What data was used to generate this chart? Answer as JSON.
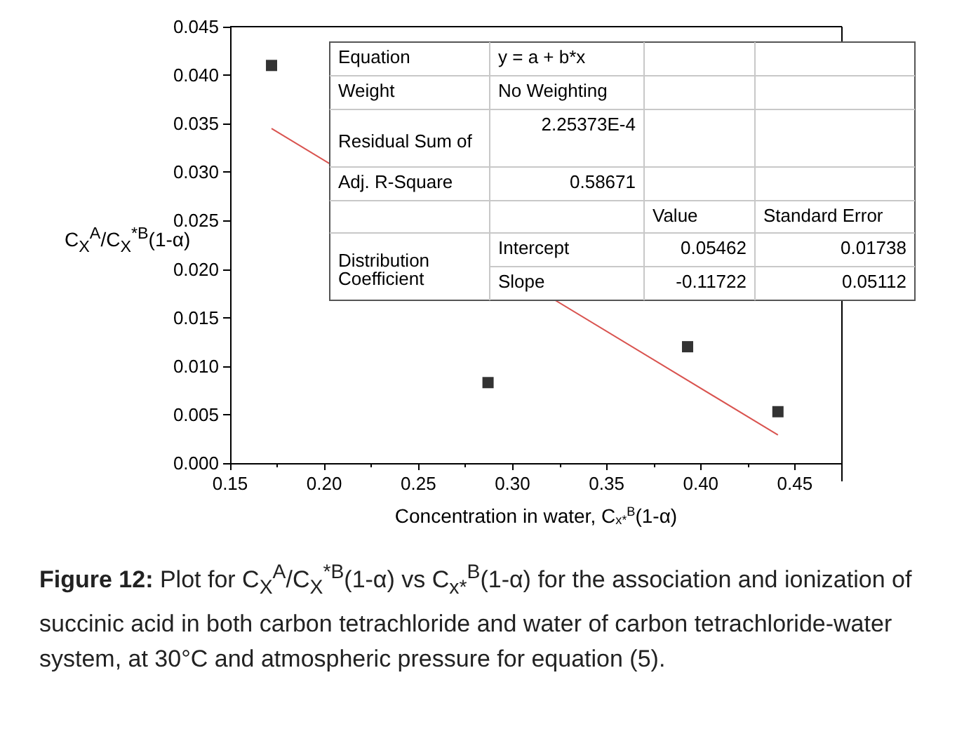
{
  "chart_data": {
    "type": "scatter",
    "xlabel": "Concentration in water, C$_{x*}$$^{B}$(1-α)",
    "ylabel": "C$_{X}$$^{A}$/C$_{X}$$^{*B}$(1-α)",
    "xlim": [
      0.15,
      0.475
    ],
    "xticks": [
      {
        "value": 0.15,
        "label": "0.15"
      },
      {
        "value": 0.2,
        "label": "0.20"
      },
      {
        "value": 0.25,
        "label": "0.25"
      },
      {
        "value": 0.3,
        "label": "0.30"
      },
      {
        "value": 0.35,
        "label": "0.35"
      },
      {
        "value": 0.4,
        "label": "0.40"
      },
      {
        "value": 0.45,
        "label": "0.45"
      }
    ],
    "ylim": [
      0,
      0.045
    ],
    "yticks": [
      {
        "value": 0,
        "label": "0.000"
      },
      {
        "value": 0.005,
        "label": "0.005"
      },
      {
        "value": 0.01,
        "label": "0.010"
      },
      {
        "value": 0.015,
        "label": "0.015"
      },
      {
        "value": 0.02,
        "label": "0.020"
      },
      {
        "value": 0.025,
        "label": "0.025"
      },
      {
        "value": 0.03,
        "label": "0.030"
      },
      {
        "value": 0.035,
        "label": "0.035"
      },
      {
        "value": 0.04,
        "label": "0.040"
      },
      {
        "value": 0.045,
        "label": "0.045"
      }
    ],
    "series": [
      {
        "type": "scatter",
        "color": "#000000",
        "marker": "square",
        "x": [
          0.172,
          0.287,
          0.393,
          0.441
        ],
        "values": [
          0.041,
          0.0083,
          0.012,
          0.0053
        ]
      },
      {
        "type": "line",
        "color": "#d9534f",
        "marker": "none",
        "x": [
          0.172,
          0.441
        ],
        "values": [
          0.0345,
          0.0029
        ]
      }
    ],
    "annotations": [
      "Equation",
      "y = a + b*x",
      "Weight",
      "No Weighting",
      "Residual Sum of",
      "2.25373E-4",
      "Adj. R-Square",
      "0.58671",
      "Value",
      "Standard Error",
      "Distribution Coefficient",
      "Intercept",
      "0.05462",
      "0.01738",
      "Slope",
      "-0.11722",
      "0.05112",
      "Figure 12: Plot for C$_{X}$$^{A}$/C$_{X}$$^{*B}$(1-α) vs C$_{x*}$$^{B}$(1-α) for the association and ionization of succinic acid in both carbon tetrachloride and water of carbon tetrachloride-water system, at 30°C and atmospheric pressure for equation (5)."
    ]
  }
}
